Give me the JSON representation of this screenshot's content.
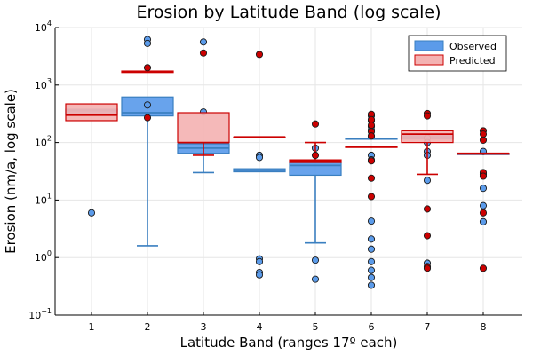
{
  "chart_data": {
    "type": "box",
    "title": "Erosion by Latitude Band (log scale)",
    "xlabel": "Latitude Band (ranges 17º each)",
    "ylabel": "Erosion (nm/a, log scale)",
    "x_ticks": [
      "1",
      "2",
      "3",
      "4",
      "5",
      "6",
      "7",
      "8"
    ],
    "y_scale": "log10",
    "ylim": [
      0.1,
      10000
    ],
    "y_ticks": [
      {
        "value": 0.1,
        "base": "10",
        "exp": "−1"
      },
      {
        "value": 1,
        "base": "10",
        "exp": "0"
      },
      {
        "value": 10,
        "base": "10",
        "exp": "1"
      },
      {
        "value": 100,
        "base": "10",
        "exp": "2"
      },
      {
        "value": 1000,
        "base": "10",
        "exp": "3"
      },
      {
        "value": 10000,
        "base": "10",
        "exp": "4"
      }
    ],
    "grid": true,
    "legend_position": "top-right",
    "series": [
      {
        "name": "Observed",
        "fill": "#5b9bea",
        "edge": "#3a7fc0",
        "outlier_color": "#5b9bea",
        "boxes": [
          {
            "band": 1,
            "q1": 300,
            "median": 360,
            "q3": 380,
            "whisker_low": null,
            "whisker_high": null,
            "outliers": [
              6
            ]
          },
          {
            "band": 2,
            "q1": 290,
            "median": 330,
            "q3": 620,
            "whisker_low": 1.6,
            "whisker_high": null,
            "outliers": [
              6200,
              5300,
              450
            ]
          },
          {
            "band": 3,
            "q1": 65,
            "median": 80,
            "q3": 95,
            "whisker_low": 30,
            "whisker_high": null,
            "outliers": [
              5600,
              340
            ]
          },
          {
            "band": 4,
            "q1": 31,
            "median": 33,
            "q3": 35,
            "whisker_low": null,
            "whisker_high": null,
            "outliers": [
              60,
              55,
              0.95,
              0.85,
              0.55,
              0.5
            ]
          },
          {
            "band": 5,
            "q1": 27,
            "median": 40,
            "q3": 45,
            "whisker_low": 1.8,
            "whisker_high": null,
            "outliers": [
              80,
              0.9,
              0.42
            ]
          },
          {
            "band": 6,
            "q1": 118,
            "median": 118,
            "q3": 118,
            "whisker_low": null,
            "whisker_high": null,
            "outliers": [
              290,
              240,
              190,
              165,
              130,
              60,
              50,
              4.3,
              2.1,
              1.4,
              0.85,
              0.6,
              0.45,
              0.33
            ]
          },
          {
            "band": 7,
            "q1": 115,
            "median": 125,
            "q3": 140,
            "whisker_low": null,
            "whisker_high": null,
            "outliers": [
              120,
              100,
              70,
              60,
              22,
              0.8
            ]
          },
          {
            "band": 8,
            "q1": 64,
            "median": 64,
            "q3": 64,
            "whisker_low": null,
            "whisker_high": null,
            "outliers": [
              70,
              28,
              16,
              8,
              4.2
            ]
          }
        ]
      },
      {
        "name": "Predicted",
        "fill": "#f4b3b3",
        "edge": "#cc0000",
        "outlier_color": "#cc0000",
        "boxes": [
          {
            "band": 1,
            "q1": 240,
            "median": 300,
            "q3": 470,
            "whisker_low": null,
            "whisker_high": null,
            "outliers": []
          },
          {
            "band": 2,
            "q1": 1650,
            "median": 1700,
            "q3": 1750,
            "whisker_low": null,
            "whisker_high": null,
            "outliers": [
              2000,
              270
            ]
          },
          {
            "band": 3,
            "q1": 100,
            "median": 100,
            "q3": 330,
            "whisker_low": 60,
            "whisker_high": null,
            "outliers": [
              3600
            ]
          },
          {
            "band": 4,
            "q1": 125,
            "median": 125,
            "q3": 125,
            "whisker_low": null,
            "whisker_high": null,
            "outliers": [
              3400
            ]
          },
          {
            "band": 5,
            "q1": 45,
            "median": 48,
            "q3": 50,
            "whisker_low": null,
            "whisker_high": 100,
            "outliers": [
              210,
              60
            ]
          },
          {
            "band": 6,
            "q1": 85,
            "median": 85,
            "q3": 85,
            "whisker_low": null,
            "whisker_high": null,
            "outliers": [
              310,
              250,
              200,
              155,
              130,
              48,
              24,
              11.5
            ]
          },
          {
            "band": 7,
            "q1": 100,
            "median": 140,
            "q3": 160,
            "whisker_low": 28,
            "whisker_high": null,
            "outliers": [
              320,
              290,
              7,
              2.4,
              0.7,
              0.65
            ]
          },
          {
            "band": 8,
            "q1": 65,
            "median": 65,
            "q3": 65,
            "whisker_low": null,
            "whisker_high": null,
            "outliers": [
              160,
              140,
              110,
              30,
              26,
              6,
              0.65
            ]
          }
        ]
      }
    ]
  }
}
